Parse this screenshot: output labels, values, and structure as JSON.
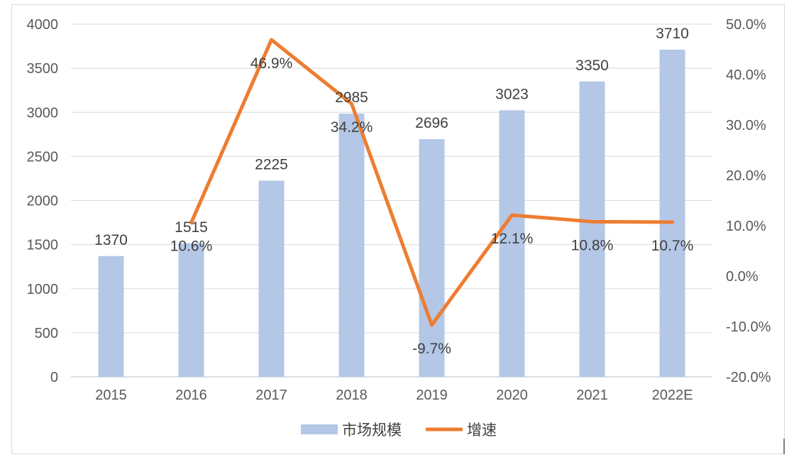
{
  "chart_data": {
    "type": "bar+line",
    "categories": [
      "2015",
      "2016",
      "2017",
      "2018",
      "2019",
      "2020",
      "2021",
      "2022E"
    ],
    "series": [
      {
        "name": "市场规模",
        "type": "bar",
        "axis": "left",
        "values": [
          1370,
          1515,
          2225,
          2985,
          2696,
          3023,
          3350,
          3710
        ],
        "labels": [
          "1370",
          "1515",
          "2225",
          "2985",
          "2696",
          "3023",
          "3350",
          "3710"
        ],
        "color": "#b4c7e7"
      },
      {
        "name": "增速",
        "type": "line",
        "axis": "right",
        "values": [
          null,
          10.6,
          46.9,
          34.2,
          -9.7,
          12.1,
          10.8,
          10.7
        ],
        "labels": [
          "",
          "10.6%",
          "46.9%",
          "34.2%",
          "-9.7%",
          "12.1%",
          "10.8%",
          "10.7%"
        ],
        "color": "#ed7d31"
      }
    ],
    "y_left": {
      "min": 0,
      "max": 4000,
      "ticks": [
        "0",
        "500",
        "1000",
        "1500",
        "2000",
        "2500",
        "3000",
        "3500",
        "4000"
      ]
    },
    "y_right": {
      "min": -20,
      "max": 50,
      "ticks": [
        "-20.0%",
        "-10.0%",
        "0.0%",
        "10.0%",
        "20.0%",
        "30.0%",
        "40.0%",
        "50.0%"
      ]
    },
    "grid": true,
    "legend_position": "bottom"
  }
}
